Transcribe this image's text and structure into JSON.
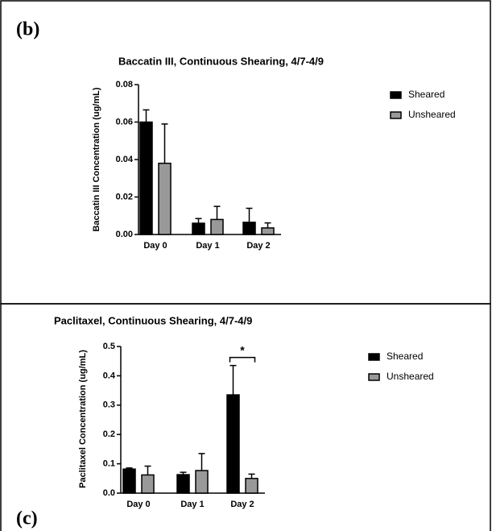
{
  "chart_data": [
    {
      "type": "bar",
      "panel_label": "(b)",
      "title": "Baccatin III, Continuous Shearing, 4/7-4/9",
      "ylabel": "Baccatin III Concentration (ug/mL)",
      "categories": [
        "Day 0",
        "Day 1",
        "Day 2"
      ],
      "series": [
        {
          "name": "Sheared",
          "color": "#000000",
          "values": [
            0.06,
            0.006,
            0.0065
          ],
          "errors": [
            0.0065,
            0.0025,
            0.0075
          ]
        },
        {
          "name": "Unsheared",
          "color": "#999999",
          "values": [
            0.038,
            0.008,
            0.0035
          ],
          "errors": [
            0.021,
            0.007,
            0.0027
          ]
        }
      ],
      "ylim": [
        0,
        0.08
      ],
      "yticks": [
        {
          "value": 0,
          "label": "0.00"
        },
        0.02,
        0.04,
        0.06,
        0.08
      ],
      "legend": "right"
    },
    {
      "type": "bar",
      "panel_label": "(c)",
      "title": "Paclitaxel, Continuous Shearing, 4/7-4/9",
      "ylabel": "Paclitaxel Concentration (ug/mL)",
      "categories": [
        "Day 0",
        "Day 1",
        "Day 2"
      ],
      "series": [
        {
          "name": "Sheared",
          "color": "#000000",
          "values": [
            0.082,
            0.063,
            0.335
          ],
          "errors": [
            0.004,
            0.008,
            0.1
          ]
        },
        {
          "name": "Unsheared",
          "color": "#999999",
          "values": [
            0.062,
            0.077,
            0.05
          ],
          "errors": [
            0.03,
            0.058,
            0.015
          ]
        }
      ],
      "ylim": [
        0,
        0.5
      ],
      "yticks": [
        {
          "value": 0,
          "label": "0.0"
        },
        0.1,
        0.2,
        0.3,
        0.4,
        0.5
      ],
      "legend": "right",
      "annotation": {
        "text": "*",
        "category": 2
      }
    }
  ]
}
